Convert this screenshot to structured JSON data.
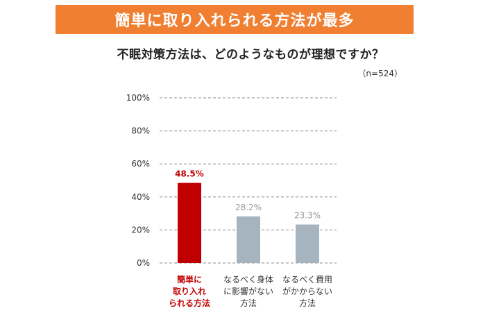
{
  "banner": {
    "text": "簡単に取り入れられる方法が最多"
  },
  "question": {
    "text": "不眠対策方法は、どのようなものが理想ですか？"
  },
  "sample": {
    "text": "（n=524）"
  },
  "colors": {
    "banner_bg": "#f07f31",
    "highlight": "#c00000",
    "bar_default": "#a6b4bf",
    "grid": "#b3b3b3"
  },
  "chart_data": {
    "type": "bar",
    "categories": [
      [
        "簡単に",
        "取り入れ",
        "られる方法"
      ],
      [
        "なるべく身体",
        "に影響がない",
        "方法"
      ],
      [
        "なるべく費用",
        "がかからない",
        "方法"
      ]
    ],
    "values": [
      48.5,
      28.2,
      23.3
    ],
    "value_labels": [
      "48.5%",
      "28.2%",
      "23.3%"
    ],
    "highlight_index": 0,
    "yticks": [
      "0%",
      "20%",
      "40%",
      "60%",
      "80%",
      "100%"
    ],
    "ylim": [
      0,
      100
    ],
    "grid": true,
    "grid_style": "dashed"
  }
}
